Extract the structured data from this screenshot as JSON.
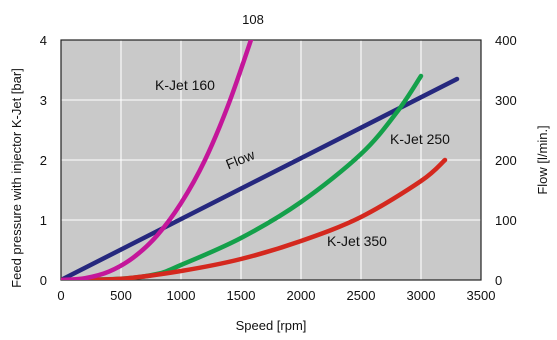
{
  "chart_data": {
    "type": "line",
    "top_annotation": "108",
    "xlabel": "Speed [rpm]",
    "ylabel_left": "Feed pressure with injector K-Jet [bar]",
    "ylabel_right": "Flow [l/min.]",
    "xlim": [
      0,
      3500
    ],
    "ylim_left": [
      0,
      4
    ],
    "ylim_right": [
      0,
      400
    ],
    "x_ticks": [
      "0",
      "500",
      "1000",
      "1500",
      "2000",
      "2500",
      "3000",
      "3500"
    ],
    "y_left_ticks": [
      "0",
      "1",
      "2",
      "3",
      "4"
    ],
    "y_right_ticks": [
      "0",
      "100",
      "200",
      "300",
      "400"
    ],
    "grid": true,
    "plot_background": "#c9c9c9",
    "series": [
      {
        "name": "K-Jet 160",
        "axis": "left",
        "color": "#c4169a",
        "x": [
          0,
          200,
          400,
          600,
          800,
          1000,
          1200,
          1400,
          1600
        ],
        "y": [
          0.0,
          0.03,
          0.14,
          0.37,
          0.74,
          1.28,
          2.0,
          2.95,
          4.1
        ]
      },
      {
        "name": "Flow",
        "axis": "right",
        "color": "#26287e",
        "x": [
          0,
          3300
        ],
        "y": [
          0,
          335
        ]
      },
      {
        "name": "K-Jet 250",
        "axis": "left",
        "color": "#14a04a",
        "x": [
          0,
          500,
          800,
          1000,
          1500,
          2000,
          2500,
          2800,
          3000
        ],
        "y": [
          0.0,
          0.02,
          0.1,
          0.25,
          0.7,
          1.3,
          2.1,
          2.8,
          3.4
        ]
      },
      {
        "name": "K-Jet 350",
        "axis": "left",
        "color": "#d4281e",
        "x": [
          0,
          500,
          1000,
          1500,
          2000,
          2500,
          3000,
          3200
        ],
        "y": [
          0.0,
          0.02,
          0.15,
          0.35,
          0.65,
          1.05,
          1.65,
          2.0
        ]
      }
    ]
  }
}
